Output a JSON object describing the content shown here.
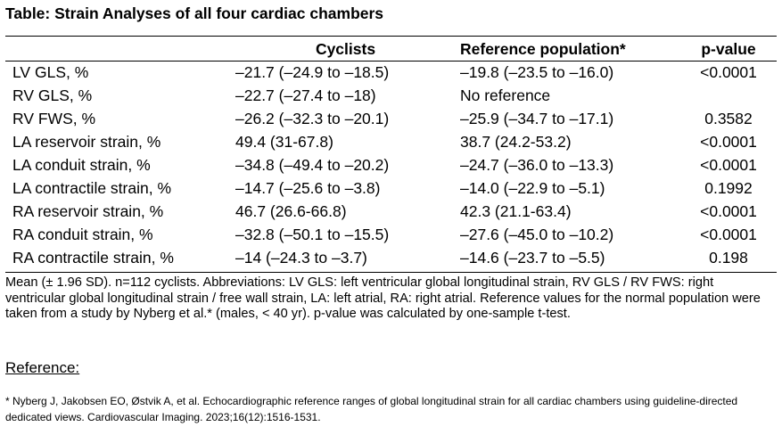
{
  "title": "Table: Strain Analyses of all four cardiac chambers",
  "table": {
    "headers": [
      "",
      "Cyclists",
      "Reference population*",
      "p-value"
    ],
    "rows": [
      [
        "LV GLS, %",
        "–21.7 (–24.9 to –18.5)",
        "–19.8 (–23.5 to –16.0)",
        "<0.0001"
      ],
      [
        "RV GLS, %",
        "–22.7 (–27.4 to –18)",
        "No reference",
        ""
      ],
      [
        "RV FWS, %",
        "–26.2 (–32.3 to –20.1)",
        "–25.9 (–34.7 to –17.1)",
        "0.3582"
      ],
      [
        "LA reservoir strain, %",
        "49.4 (31-67.8)",
        "38.7 (24.2-53.2)",
        "<0.0001"
      ],
      [
        "LA conduit strain, %",
        "–34.8 (–49.4 to –20.2)",
        "–24.7 (–36.0 to –13.3)",
        "<0.0001"
      ],
      [
        "LA contractile strain, %",
        "–14.7 (–25.6 to –3.8)",
        "–14.0 (–22.9 to –5.1)",
        "0.1992"
      ],
      [
        "RA reservoir strain, %",
        "46.7 (26.6-66.8)",
        "42.3 (21.1-63.4)",
        "<0.0001"
      ],
      [
        "RA conduit strain, %",
        "–32.8 (–50.1 to –15.5)",
        "–27.6 (–45.0 to –10.2)",
        "<0.0001"
      ],
      [
        "RA contractile strain, %",
        "–14 (–24.3 to –3.7)",
        "–14.6 (–23.7 to –5.5)",
        "0.198"
      ]
    ]
  },
  "footnote": "Mean (± 1.96 SD). n=112 cyclists. Abbreviations: LV GLS: left ventricular global longitudinal strain, RV GLS / RV FWS: right ventricular global longitudinal strain / free wall strain, LA: left atrial, RA: right atrial. Reference values for the normal population were taken from a study by Nyberg et al.* (males, < 40 yr). p-value was calculated by one-sample t-test.",
  "reference": {
    "heading": "Reference:",
    "text": "* Nyberg J, Jakobsen EO, Østvik A, et al. Echocardiographic reference ranges of global longitudinal strain for all cardiac chambers using guideline-directed dedicated views. Cardiovascular Imaging. 2023;16(12):1516-1531."
  }
}
